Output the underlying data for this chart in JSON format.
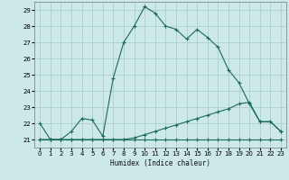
{
  "title": "",
  "xlabel": "Humidex (Indice chaleur)",
  "bg_color": "#cce8e8",
  "grid_color": "#aacfcf",
  "line_color": "#1a6b5a",
  "xlim": [
    -0.5,
    23.5
  ],
  "ylim": [
    20.5,
    29.5
  ],
  "xticks": [
    0,
    1,
    2,
    3,
    4,
    5,
    6,
    7,
    8,
    9,
    10,
    11,
    12,
    13,
    14,
    15,
    16,
    17,
    18,
    19,
    20,
    21,
    22,
    23
  ],
  "yticks": [
    21,
    22,
    23,
    24,
    25,
    26,
    27,
    28,
    29
  ],
  "series1_x": [
    0,
    1,
    2,
    3,
    4,
    5,
    6,
    7,
    8,
    9,
    10,
    11,
    12,
    13,
    14,
    15,
    16,
    17,
    18,
    19,
    20,
    21,
    22,
    23
  ],
  "series1_y": [
    22.0,
    21.0,
    21.0,
    21.5,
    22.3,
    22.2,
    21.2,
    24.8,
    27.0,
    28.0,
    29.2,
    28.8,
    28.0,
    27.8,
    27.2,
    27.8,
    27.3,
    26.7,
    25.3,
    24.5,
    23.2,
    22.1,
    22.1,
    21.5
  ],
  "series3_x": [
    0,
    23
  ],
  "series3_y": [
    21.0,
    21.0
  ],
  "series2_full_x": [
    0,
    1,
    2,
    3,
    4,
    5,
    6,
    7,
    8,
    9,
    10,
    11,
    12,
    13,
    14,
    15,
    16,
    17,
    18,
    19,
    20,
    21,
    22,
    23
  ],
  "series2_full_y": [
    21.0,
    21.0,
    21.0,
    21.0,
    21.0,
    21.0,
    21.0,
    21.0,
    21.0,
    21.1,
    21.3,
    21.5,
    21.7,
    21.9,
    22.1,
    22.3,
    22.5,
    22.7,
    22.9,
    23.2,
    23.3,
    22.1,
    22.1,
    21.5
  ],
  "series3_full_x": [
    0,
    1,
    2,
    3,
    4,
    5,
    6,
    7,
    8,
    9,
    10,
    11,
    12,
    13,
    14,
    15,
    16,
    17,
    18,
    19,
    20,
    21,
    22,
    23
  ],
  "series3_full_y": [
    21.0,
    21.0,
    21.0,
    21.0,
    21.0,
    21.0,
    21.0,
    21.0,
    21.0,
    21.0,
    21.0,
    21.0,
    21.0,
    21.0,
    21.0,
    21.0,
    21.0,
    21.0,
    21.0,
    21.0,
    21.0,
    21.0,
    21.0,
    21.0
  ]
}
